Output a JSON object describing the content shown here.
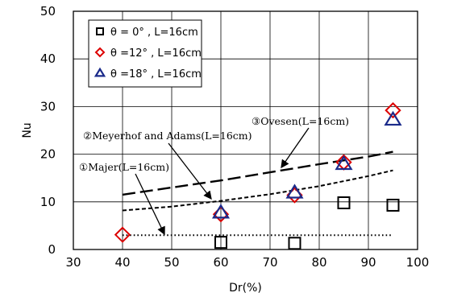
{
  "chart_data": {
    "type": "scatter",
    "xlabel": "Dr(%)",
    "ylabel": "Nu",
    "xlim": [
      30,
      100
    ],
    "ylim": [
      0,
      50
    ],
    "xticks": [
      "30",
      "40",
      "50",
      "60",
      "70",
      "80",
      "90",
      "100"
    ],
    "yticks": [
      "0",
      "10",
      "20",
      "30",
      "40",
      "50"
    ],
    "grid": true,
    "legend_position": "top-left",
    "series": [
      {
        "name": "θ = 0° , L=16cm",
        "marker": "square",
        "color": "#000000",
        "x": [
          60,
          75,
          85,
          95
        ],
        "y": [
          1.5,
          1.3,
          9.8,
          9.3
        ]
      },
      {
        "name": "θ =12° , L=16cm",
        "marker": "diamond",
        "color": "#dd0000",
        "x": [
          40,
          60,
          75,
          85,
          95
        ],
        "y": [
          3.1,
          7.4,
          11.4,
          18.3,
          29.2
        ]
      },
      {
        "name": "θ =18° , L=16cm",
        "marker": "triangle",
        "color": "#1a2a8a",
        "x": [
          60,
          75,
          85,
          95
        ],
        "y": [
          7.7,
          11.9,
          17.9,
          27.2
        ]
      }
    ],
    "curves": [
      {
        "label": "③Ovesen(L=16cm)",
        "style": "long-dash",
        "x": [
          40,
          50,
          60,
          70,
          80,
          90,
          95
        ],
        "y": [
          11.5,
          13.0,
          14.5,
          16.2,
          17.9,
          19.5,
          20.5
        ]
      },
      {
        "label": "②Meyerhof and Adams(L=16cm)",
        "style": "short-dash",
        "x": [
          40,
          50,
          60,
          70,
          80,
          90,
          95
        ],
        "y": [
          8.2,
          9.0,
          10.2,
          11.6,
          13.3,
          15.4,
          16.6
        ]
      },
      {
        "label": "①Majer(L=16cm)",
        "style": "dotted",
        "x": [
          40,
          95
        ],
        "y": [
          3.0,
          3.0
        ]
      }
    ]
  }
}
